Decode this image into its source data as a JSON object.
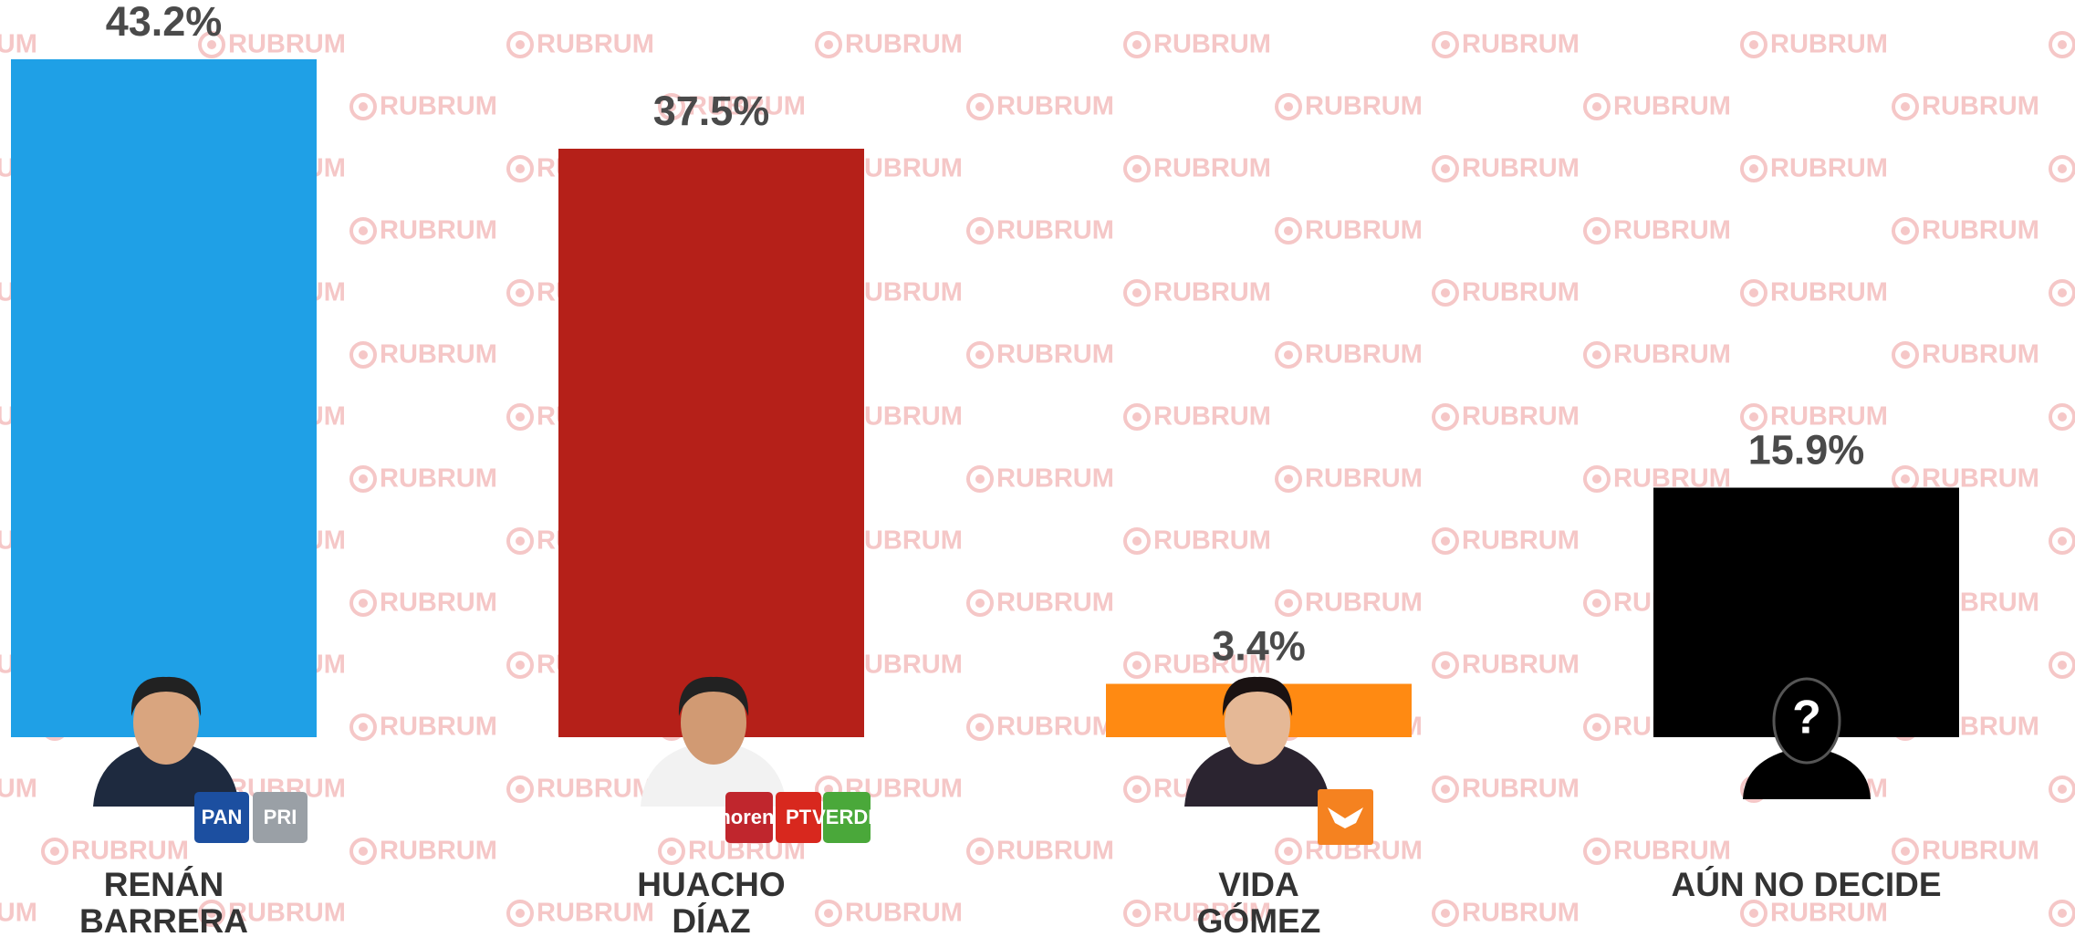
{
  "chart_data": {
    "type": "bar",
    "watermark": "RUBRUM",
    "categories": [
      "RENÁN\nBARRERA",
      "HUACHO\nDÍAZ",
      "VIDA\nGÓMEZ",
      "AÚN NO DECIDE"
    ],
    "values": [
      43.2,
      37.5,
      3.4,
      15.9
    ],
    "value_labels": [
      "43.2%",
      "37.5%",
      "3.4%",
      "15.9%"
    ],
    "colors": [
      "#1fa0e6",
      "#b52019",
      "#ff8a12",
      "#000000"
    ],
    "logos": [
      [
        "PAN",
        "PRI"
      ],
      [
        "morena",
        "PT",
        "VERDE"
      ],
      [],
      []
    ],
    "unknown_icon": "?"
  }
}
